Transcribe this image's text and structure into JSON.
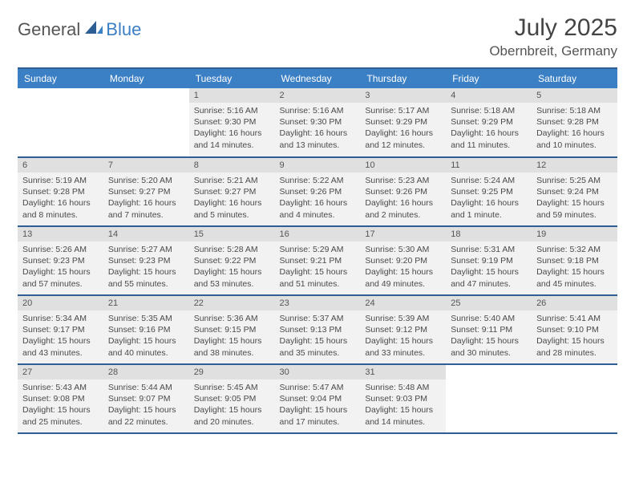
{
  "logo": {
    "part1": "General",
    "part2": "Blue",
    "icon_color": "#2d5f94"
  },
  "title": "July 2025",
  "location": "Obernbreit, Germany",
  "colors": {
    "header_bg": "#3b7fc4",
    "header_text": "#ffffff",
    "rule": "#2d5f94",
    "daynum_bg": "#e0e0e0",
    "cell_bg": "#f2f2f2",
    "text": "#4a4a4a"
  },
  "dayHeaders": [
    "Sunday",
    "Monday",
    "Tuesday",
    "Wednesday",
    "Thursday",
    "Friday",
    "Saturday"
  ],
  "weeks": [
    [
      null,
      null,
      {
        "n": "1",
        "sr": "5:16 AM",
        "ss": "9:30 PM",
        "dl": "16 hours and 14 minutes."
      },
      {
        "n": "2",
        "sr": "5:16 AM",
        "ss": "9:30 PM",
        "dl": "16 hours and 13 minutes."
      },
      {
        "n": "3",
        "sr": "5:17 AM",
        "ss": "9:29 PM",
        "dl": "16 hours and 12 minutes."
      },
      {
        "n": "4",
        "sr": "5:18 AM",
        "ss": "9:29 PM",
        "dl": "16 hours and 11 minutes."
      },
      {
        "n": "5",
        "sr": "5:18 AM",
        "ss": "9:28 PM",
        "dl": "16 hours and 10 minutes."
      }
    ],
    [
      {
        "n": "6",
        "sr": "5:19 AM",
        "ss": "9:28 PM",
        "dl": "16 hours and 8 minutes."
      },
      {
        "n": "7",
        "sr": "5:20 AM",
        "ss": "9:27 PM",
        "dl": "16 hours and 7 minutes."
      },
      {
        "n": "8",
        "sr": "5:21 AM",
        "ss": "9:27 PM",
        "dl": "16 hours and 5 minutes."
      },
      {
        "n": "9",
        "sr": "5:22 AM",
        "ss": "9:26 PM",
        "dl": "16 hours and 4 minutes."
      },
      {
        "n": "10",
        "sr": "5:23 AM",
        "ss": "9:26 PM",
        "dl": "16 hours and 2 minutes."
      },
      {
        "n": "11",
        "sr": "5:24 AM",
        "ss": "9:25 PM",
        "dl": "16 hours and 1 minute."
      },
      {
        "n": "12",
        "sr": "5:25 AM",
        "ss": "9:24 PM",
        "dl": "15 hours and 59 minutes."
      }
    ],
    [
      {
        "n": "13",
        "sr": "5:26 AM",
        "ss": "9:23 PM",
        "dl": "15 hours and 57 minutes."
      },
      {
        "n": "14",
        "sr": "5:27 AM",
        "ss": "9:23 PM",
        "dl": "15 hours and 55 minutes."
      },
      {
        "n": "15",
        "sr": "5:28 AM",
        "ss": "9:22 PM",
        "dl": "15 hours and 53 minutes."
      },
      {
        "n": "16",
        "sr": "5:29 AM",
        "ss": "9:21 PM",
        "dl": "15 hours and 51 minutes."
      },
      {
        "n": "17",
        "sr": "5:30 AM",
        "ss": "9:20 PM",
        "dl": "15 hours and 49 minutes."
      },
      {
        "n": "18",
        "sr": "5:31 AM",
        "ss": "9:19 PM",
        "dl": "15 hours and 47 minutes."
      },
      {
        "n": "19",
        "sr": "5:32 AM",
        "ss": "9:18 PM",
        "dl": "15 hours and 45 minutes."
      }
    ],
    [
      {
        "n": "20",
        "sr": "5:34 AM",
        "ss": "9:17 PM",
        "dl": "15 hours and 43 minutes."
      },
      {
        "n": "21",
        "sr": "5:35 AM",
        "ss": "9:16 PM",
        "dl": "15 hours and 40 minutes."
      },
      {
        "n": "22",
        "sr": "5:36 AM",
        "ss": "9:15 PM",
        "dl": "15 hours and 38 minutes."
      },
      {
        "n": "23",
        "sr": "5:37 AM",
        "ss": "9:13 PM",
        "dl": "15 hours and 35 minutes."
      },
      {
        "n": "24",
        "sr": "5:39 AM",
        "ss": "9:12 PM",
        "dl": "15 hours and 33 minutes."
      },
      {
        "n": "25",
        "sr": "5:40 AM",
        "ss": "9:11 PM",
        "dl": "15 hours and 30 minutes."
      },
      {
        "n": "26",
        "sr": "5:41 AM",
        "ss": "9:10 PM",
        "dl": "15 hours and 28 minutes."
      }
    ],
    [
      {
        "n": "27",
        "sr": "5:43 AM",
        "ss": "9:08 PM",
        "dl": "15 hours and 25 minutes."
      },
      {
        "n": "28",
        "sr": "5:44 AM",
        "ss": "9:07 PM",
        "dl": "15 hours and 22 minutes."
      },
      {
        "n": "29",
        "sr": "5:45 AM",
        "ss": "9:05 PM",
        "dl": "15 hours and 20 minutes."
      },
      {
        "n": "30",
        "sr": "5:47 AM",
        "ss": "9:04 PM",
        "dl": "15 hours and 17 minutes."
      },
      {
        "n": "31",
        "sr": "5:48 AM",
        "ss": "9:03 PM",
        "dl": "15 hours and 14 minutes."
      },
      null,
      null
    ]
  ],
  "labels": {
    "sunrise": "Sunrise:",
    "sunset": "Sunset:",
    "daylight": "Daylight:"
  }
}
